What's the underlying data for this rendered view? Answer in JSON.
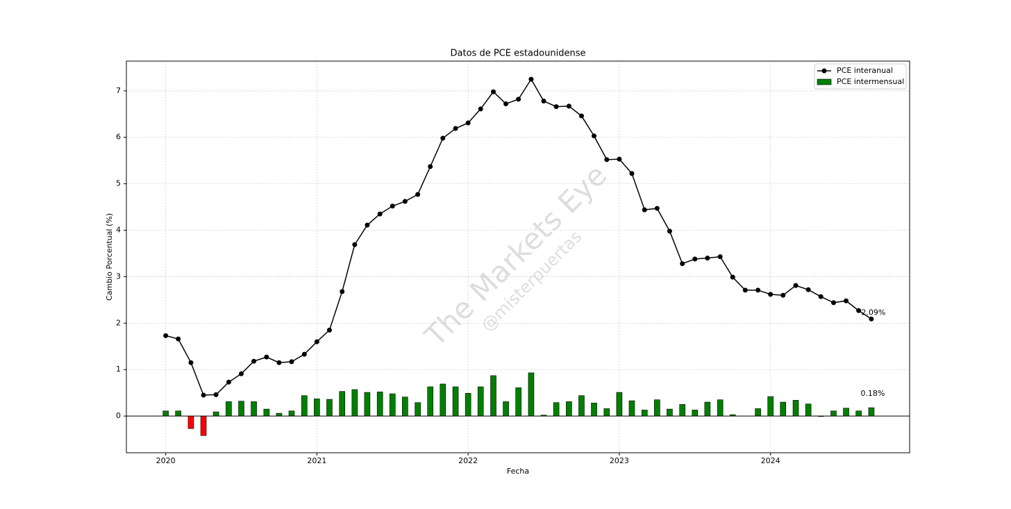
{
  "chart_data": {
    "type": "combo",
    "title": "Datos de PCE estadounidense",
    "x_label": "Fecha",
    "y_label": "Cambio Porcentual (%)",
    "watermark": [
      "The Markets Eye",
      "@misterpuertas"
    ],
    "x": [
      2020,
      2020.083,
      2020.167,
      2020.25,
      2020.333,
      2020.417,
      2020.5,
      2020.583,
      2020.667,
      2020.75,
      2020.833,
      2020.917,
      2021,
      2021.083,
      2021.167,
      2021.25,
      2021.333,
      2021.417,
      2021.5,
      2021.583,
      2021.667,
      2021.75,
      2021.833,
      2021.917,
      2022,
      2022.083,
      2022.167,
      2022.25,
      2022.333,
      2022.417,
      2022.5,
      2022.583,
      2022.667,
      2022.75,
      2022.833,
      2022.917,
      2023,
      2023.083,
      2023.167,
      2023.25,
      2023.333,
      2023.417,
      2023.5,
      2023.583,
      2023.667,
      2023.75,
      2023.833,
      2023.917,
      2024,
      2024.083,
      2024.167,
      2024.25,
      2024.333,
      2024.417,
      2024.5,
      2024.583,
      2024.667
    ],
    "series": [
      {
        "name": "PCE interanual",
        "type": "line",
        "color": "#000000",
        "values": [
          1.73,
          1.66,
          1.15,
          0.45,
          0.46,
          0.73,
          0.91,
          1.18,
          1.27,
          1.15,
          1.17,
          1.33,
          1.6,
          1.85,
          2.68,
          3.69,
          4.11,
          4.35,
          4.52,
          4.62,
          4.77,
          5.37,
          5.98,
          6.19,
          6.31,
          6.61,
          6.98,
          6.72,
          6.82,
          7.25,
          6.78,
          6.66,
          6.67,
          6.46,
          6.03,
          5.52,
          5.53,
          5.22,
          4.44,
          4.47,
          3.98,
          3.28,
          3.38,
          3.4,
          3.43,
          2.99,
          2.71,
          2.71,
          2.62,
          2.6,
          2.81,
          2.72,
          2.57,
          2.44,
          2.48,
          2.27,
          2.09
        ],
        "value_labels": [
          null,
          null,
          null,
          null,
          null,
          null,
          null,
          null,
          null,
          null,
          null,
          null,
          null,
          null,
          null,
          null,
          null,
          null,
          null,
          null,
          null,
          null,
          null,
          null,
          null,
          null,
          null,
          null,
          null,
          null,
          null,
          null,
          null,
          null,
          null,
          null,
          null,
          null,
          null,
          null,
          null,
          null,
          null,
          null,
          null,
          null,
          null,
          null,
          null,
          null,
          null,
          null,
          null,
          null,
          null,
          null,
          "2.09%"
        ]
      },
      {
        "name": "PCE intermensual",
        "type": "bar",
        "color": "#008000",
        "negative_color": "#ff0000",
        "values": [
          0.11,
          0.11,
          -0.27,
          -0.42,
          0.09,
          0.31,
          0.32,
          0.31,
          0.15,
          0.06,
          0.11,
          0.44,
          0.37,
          0.36,
          0.53,
          0.57,
          0.51,
          0.52,
          0.48,
          0.41,
          0.29,
          0.63,
          0.69,
          0.63,
          0.49,
          0.63,
          0.87,
          0.31,
          0.61,
          0.93,
          0.02,
          0.29,
          0.31,
          0.44,
          0.28,
          0.16,
          0.51,
          0.33,
          0.13,
          0.35,
          0.15,
          0.25,
          0.13,
          0.3,
          0.35,
          0.03,
          0.0,
          0.16,
          0.42,
          0.3,
          0.34,
          0.26,
          -0.01,
          0.11,
          0.17,
          0.11,
          0.18
        ],
        "value_labels": [
          null,
          null,
          null,
          null,
          null,
          null,
          null,
          null,
          null,
          null,
          null,
          null,
          null,
          null,
          null,
          null,
          null,
          null,
          null,
          null,
          null,
          null,
          null,
          null,
          null,
          null,
          null,
          null,
          null,
          null,
          null,
          null,
          null,
          null,
          null,
          null,
          null,
          null,
          null,
          null,
          null,
          null,
          null,
          null,
          null,
          null,
          null,
          null,
          null,
          null,
          null,
          null,
          null,
          null,
          null,
          null,
          "0.18%"
        ]
      }
    ],
    "xlim": [
      2019.74,
      2024.92
    ],
    "xticks": [
      2020,
      2021,
      2022,
      2023,
      2024
    ],
    "ylim": [
      -0.79,
      7.64
    ],
    "yticks": [
      0,
      1,
      2,
      3,
      4,
      5,
      6,
      7
    ],
    "axhline": 0,
    "grid": true,
    "legend": "upper right"
  }
}
